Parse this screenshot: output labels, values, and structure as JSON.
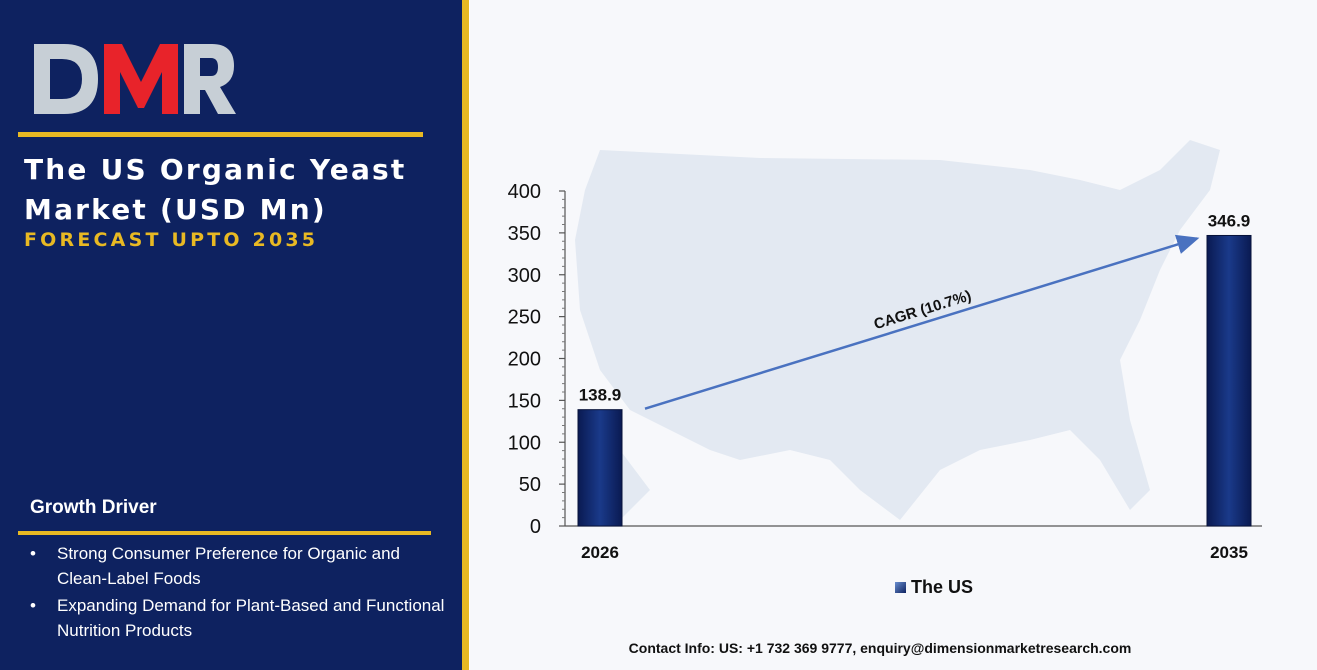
{
  "brand": {
    "logo_text": "DMR",
    "colors": {
      "navy": "#0e2260",
      "gold": "#e8b923",
      "logo_red": "#e8232a",
      "logo_gray": "#c7cfd6",
      "bar": "#0e2260",
      "arrow": "#4a72c0"
    }
  },
  "sidebar": {
    "title": "The US Organic Yeast Market (USD Mn)",
    "subtitle": "FORECAST UPTO 2035",
    "growth_heading": "Growth Driver",
    "bullet_glyph": "•",
    "drivers": [
      "Strong Consumer Preference for Organic and Clean-Label Foods",
      "Expanding Demand for Plant-Based and Functional Nutrition Products"
    ]
  },
  "chart_data": {
    "type": "bar",
    "categories": [
      "2026",
      "2035"
    ],
    "series": [
      {
        "name": "The US",
        "values": [
          138.9,
          346.9
        ]
      }
    ],
    "data_labels": [
      "138.9",
      "346.9"
    ],
    "yticks": [
      "0",
      "50",
      "100",
      "150",
      "200",
      "250",
      "300",
      "350",
      "400"
    ],
    "ylim": [
      0,
      400
    ],
    "annotation": "CAGR (10.7%)",
    "legend_position": "bottom",
    "grid": false
  },
  "footer": {
    "contact": "Contact Info: US: +1 732 369 9777, enquiry@dimensionmarketresearch.com"
  }
}
